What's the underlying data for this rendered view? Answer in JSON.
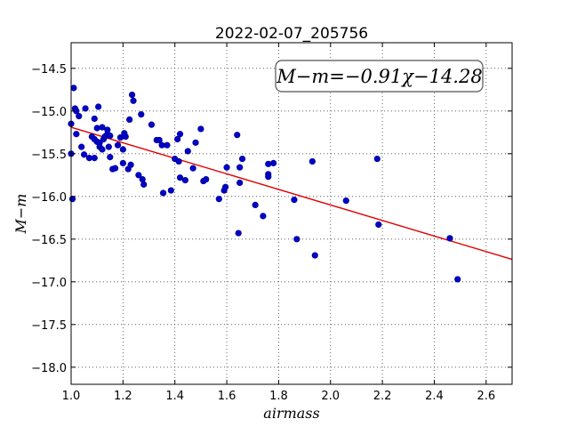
{
  "chart_data": {
    "type": "scatter",
    "title": "2022-02-07_205756",
    "xlabel": "airmass",
    "ylabel": "M−m",
    "xlim": [
      1.0,
      2.7
    ],
    "ylim": [
      -18.2,
      -14.2
    ],
    "y_inverted": false,
    "grid": true,
    "x_ticks": [
      "1.0",
      "1.2",
      "1.4",
      "1.6",
      "1.8",
      "2.0",
      "2.2",
      "2.4",
      "2.6"
    ],
    "y_ticks": [
      "−14.5",
      "−15.0",
      "−15.5",
      "−16.0",
      "−16.5",
      "−17.0",
      "−17.5",
      "−18.0"
    ],
    "annotation": "M−m=−0.91χ−14.28",
    "fit": {
      "slope": -0.91,
      "intercept": -14.28,
      "color": "#e00000"
    },
    "point_color": "#0000c8",
    "points": [
      [
        1.0,
        -15.15
      ],
      [
        1.0,
        -15.5
      ],
      [
        1.005,
        -16.03
      ],
      [
        1.01,
        -14.73
      ],
      [
        1.015,
        -14.97
      ],
      [
        1.02,
        -15.0
      ],
      [
        1.02,
        -15.27
      ],
      [
        1.03,
        -15.06
      ],
      [
        1.04,
        -15.42
      ],
      [
        1.05,
        -15.51
      ],
      [
        1.055,
        -14.97
      ],
      [
        1.07,
        -15.55
      ],
      [
        1.08,
        -15.3
      ],
      [
        1.09,
        -15.09
      ],
      [
        1.09,
        -15.33
      ],
      [
        1.09,
        -15.55
      ],
      [
        1.1,
        -15.2
      ],
      [
        1.1,
        -15.36
      ],
      [
        1.105,
        -14.95
      ],
      [
        1.11,
        -15.37
      ],
      [
        1.11,
        -15.42
      ],
      [
        1.12,
        -15.19
      ],
      [
        1.12,
        -15.45
      ],
      [
        1.125,
        -15.33
      ],
      [
        1.13,
        -15.3
      ],
      [
        1.14,
        -15.27
      ],
      [
        1.14,
        -15.22
      ],
      [
        1.145,
        -15.42
      ],
      [
        1.15,
        -15.29
      ],
      [
        1.15,
        -15.54
      ],
      [
        1.16,
        -15.68
      ],
      [
        1.17,
        -15.67
      ],
      [
        1.18,
        -15.4
      ],
      [
        1.19,
        -15.31
      ],
      [
        1.2,
        -15.61
      ],
      [
        1.2,
        -15.45
      ],
      [
        1.205,
        -15.26
      ],
      [
        1.21,
        -15.3
      ],
      [
        1.22,
        -15.68
      ],
      [
        1.225,
        -15.1
      ],
      [
        1.23,
        -15.63
      ],
      [
        1.235,
        -14.81
      ],
      [
        1.24,
        -14.88
      ],
      [
        1.26,
        -15.75
      ],
      [
        1.27,
        -15.04
      ],
      [
        1.275,
        -15.8
      ],
      [
        1.28,
        -15.86
      ],
      [
        1.31,
        -15.16
      ],
      [
        1.33,
        -15.34
      ],
      [
        1.34,
        -15.34
      ],
      [
        1.35,
        -15.4
      ],
      [
        1.355,
        -15.96
      ],
      [
        1.37,
        -15.4
      ],
      [
        1.385,
        -15.93
      ],
      [
        1.4,
        -15.56
      ],
      [
        1.41,
        -15.33
      ],
      [
        1.415,
        -15.59
      ],
      [
        1.42,
        -15.27
      ],
      [
        1.42,
        -15.78
      ],
      [
        1.44,
        -15.81
      ],
      [
        1.45,
        -15.47
      ],
      [
        1.47,
        -15.67
      ],
      [
        1.48,
        -15.37
      ],
      [
        1.5,
        -15.21
      ],
      [
        1.51,
        -15.82
      ],
      [
        1.52,
        -15.8
      ],
      [
        1.57,
        -16.03
      ],
      [
        1.59,
        -15.93
      ],
      [
        1.595,
        -15.89
      ],
      [
        1.6,
        -15.66
      ],
      [
        1.64,
        -15.28
      ],
      [
        1.645,
        -16.43
      ],
      [
        1.65,
        -15.84
      ],
      [
        1.65,
        -15.66
      ],
      [
        1.66,
        -15.56
      ],
      [
        1.71,
        -16.1
      ],
      [
        1.74,
        -16.23
      ],
      [
        1.76,
        -15.62
      ],
      [
        1.76,
        -15.74
      ],
      [
        1.76,
        -15.77
      ],
      [
        1.78,
        -15.61
      ],
      [
        1.86,
        -16.04
      ],
      [
        1.87,
        -16.5
      ],
      [
        1.93,
        -15.59
      ],
      [
        1.94,
        -16.69
      ],
      [
        2.06,
        -16.05
      ],
      [
        2.18,
        -15.56
      ],
      [
        2.185,
        -16.33
      ],
      [
        2.46,
        -16.49
      ],
      [
        2.49,
        -16.97
      ]
    ]
  }
}
